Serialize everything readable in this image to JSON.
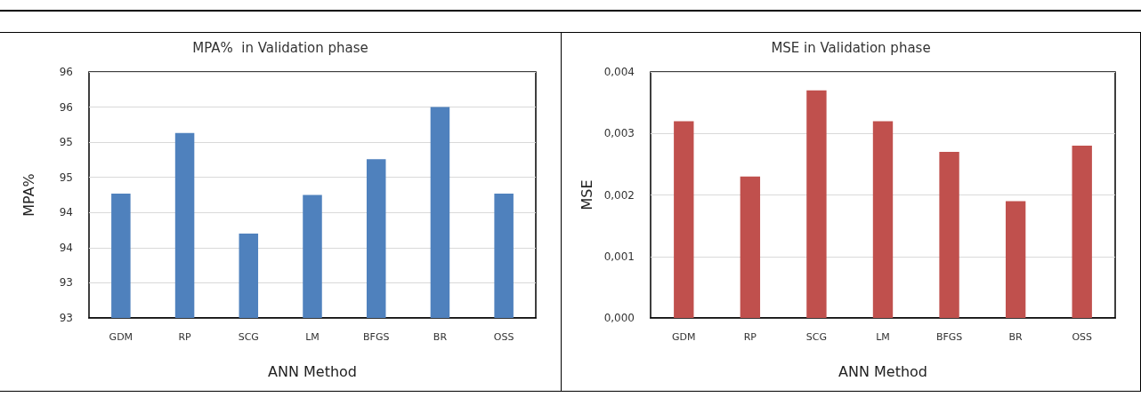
{
  "chart_data": [
    {
      "type": "bar",
      "title": "MPA%  in Validation phase",
      "xlabel": "ANN Method",
      "ylabel": "MPA%",
      "categories": [
        "GDM",
        "RP",
        "SCG",
        "LM",
        "BFGS",
        "BR",
        "OSS"
      ],
      "values": [
        94.77,
        95.63,
        94.2,
        94.75,
        95.26,
        96.0,
        94.77
      ],
      "color": "#4f81bd",
      "ylim": [
        93,
        96.5
      ],
      "yticks": [
        {
          "value": 93,
          "label": "93"
        },
        {
          "value": 93.5,
          "label": "93"
        },
        {
          "value": 94,
          "label": "94"
        },
        {
          "value": 94.5,
          "label": "94"
        },
        {
          "value": 95,
          "label": "95"
        },
        {
          "value": 95.5,
          "label": "95"
        },
        {
          "value": 96,
          "label": "96"
        },
        {
          "value": 96.5,
          "label": "96"
        }
      ],
      "grid": "y"
    },
    {
      "type": "bar",
      "title": "MSE in Validation phase",
      "xlabel": "ANN Method",
      "ylabel": "MSE",
      "categories": [
        "GDM",
        "RP",
        "SCG",
        "LM",
        "BFGS",
        "BR",
        "OSS"
      ],
      "values": [
        0.0032,
        0.0023,
        0.0037,
        0.0032,
        0.0027,
        0.0019,
        0.0028
      ],
      "color": "#c0504d",
      "ylim": [
        0,
        0.004
      ],
      "yticks": [
        {
          "value": 0,
          "label": "0,000"
        },
        {
          "value": 0.001,
          "label": "0,001"
        },
        {
          "value": 0.002,
          "label": "0,002"
        },
        {
          "value": 0.003,
          "label": "0,003"
        },
        {
          "value": 0.004,
          "label": "0,004"
        }
      ],
      "grid": "y"
    }
  ]
}
